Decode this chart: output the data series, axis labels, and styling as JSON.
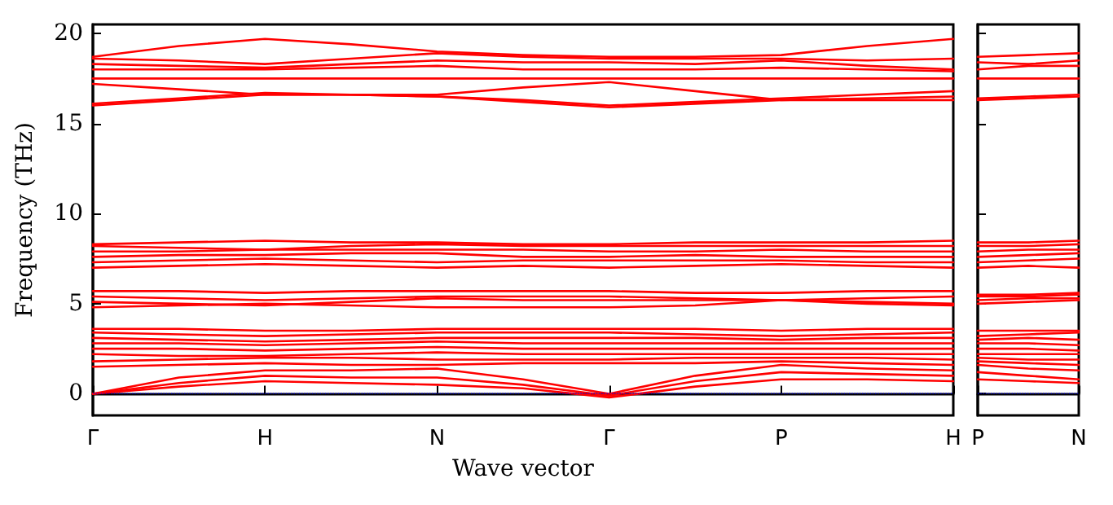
{
  "chart_data": [
    {
      "type": "line",
      "xlabel": "Wave vector",
      "ylabel": "Frequency (THz)",
      "categories": [
        "Γ",
        null,
        "H",
        null,
        "N",
        null,
        "Γ",
        null,
        "P",
        null,
        "H"
      ],
      "ylim": [
        -1.2,
        20.5
      ],
      "yticks": [
        0,
        5,
        10,
        15,
        20
      ],
      "grid": false,
      "marker": "none",
      "line_style": "solid",
      "ref_lines": [
        {
          "axis": "y",
          "value": 0,
          "color": "#0000ff",
          "line_style": "dotted"
        }
      ],
      "series": [
        {
          "color": "#ff0000",
          "values": [
            16.0,
            16.3,
            16.6,
            16.6,
            16.5,
            16.2,
            15.9,
            16.1,
            16.3,
            16.4,
            16.5
          ]
        },
        {
          "color": "#ff0000",
          "values": [
            16.1,
            16.4,
            16.7,
            16.6,
            16.5,
            16.3,
            16.0,
            16.2,
            16.4,
            16.6,
            16.8
          ]
        },
        {
          "color": "#ff0000",
          "values": [
            17.2,
            16.9,
            16.6,
            16.6,
            16.6,
            17.0,
            17.3,
            16.8,
            16.3,
            16.3,
            16.3
          ]
        },
        {
          "color": "#ff0000",
          "values": [
            17.5,
            17.5,
            17.5,
            17.5,
            17.5,
            17.5,
            17.5,
            17.5,
            17.5,
            17.5,
            17.5
          ]
        },
        {
          "color": "#ff0000",
          "values": [
            18.0,
            18.0,
            18.0,
            18.1,
            18.2,
            18.0,
            18.0,
            18.0,
            18.1,
            18.0,
            17.9
          ]
        },
        {
          "color": "#ff0000",
          "values": [
            18.3,
            18.2,
            18.1,
            18.3,
            18.5,
            18.4,
            18.4,
            18.3,
            18.5,
            18.2,
            18.0
          ]
        },
        {
          "color": "#ff0000",
          "values": [
            18.6,
            18.5,
            18.3,
            18.6,
            18.9,
            18.7,
            18.6,
            18.6,
            18.6,
            18.5,
            18.6
          ]
        },
        {
          "color": "#ff0000",
          "values": [
            18.7,
            19.3,
            19.7,
            19.4,
            19.0,
            18.8,
            18.7,
            18.7,
            18.8,
            19.3,
            19.7
          ]
        },
        {
          "color": "#ff0000",
          "values": [
            7.0,
            7.1,
            7.2,
            7.1,
            7.0,
            7.1,
            7.0,
            7.1,
            7.2,
            7.1,
            7.0
          ]
        },
        {
          "color": "#ff0000",
          "values": [
            7.3,
            7.4,
            7.5,
            7.4,
            7.3,
            7.4,
            7.4,
            7.4,
            7.4,
            7.3,
            7.3
          ]
        },
        {
          "color": "#ff0000",
          "values": [
            7.6,
            7.7,
            7.7,
            7.8,
            7.8,
            7.6,
            7.6,
            7.7,
            7.6,
            7.6,
            7.6
          ]
        },
        {
          "color": "#ff0000",
          "values": [
            7.9,
            7.9,
            8.0,
            8.0,
            8.0,
            8.0,
            7.9,
            7.9,
            8.0,
            7.9,
            7.9
          ]
        },
        {
          "color": "#ff0000",
          "values": [
            8.2,
            8.1,
            8.0,
            8.2,
            8.3,
            8.2,
            8.2,
            8.2,
            8.2,
            8.2,
            8.2
          ]
        },
        {
          "color": "#ff0000",
          "values": [
            8.3,
            8.4,
            8.5,
            8.4,
            8.4,
            8.3,
            8.3,
            8.4,
            8.4,
            8.4,
            8.5
          ]
        },
        {
          "color": "#ff0000",
          "values": [
            4.8,
            4.9,
            5.0,
            4.9,
            4.8,
            4.8,
            4.8,
            4.9,
            5.2,
            5.0,
            4.9
          ]
        },
        {
          "color": "#ff0000",
          "values": [
            5.1,
            5.0,
            4.9,
            5.1,
            5.3,
            5.2,
            5.2,
            5.2,
            5.2,
            5.1,
            5.0
          ]
        },
        {
          "color": "#ff0000",
          "values": [
            5.4,
            5.3,
            5.2,
            5.3,
            5.4,
            5.4,
            5.4,
            5.3,
            5.2,
            5.3,
            5.4
          ]
        },
        {
          "color": "#ff0000",
          "values": [
            5.7,
            5.7,
            5.6,
            5.7,
            5.7,
            5.7,
            5.7,
            5.6,
            5.6,
            5.7,
            5.7
          ]
        },
        {
          "color": "#ff0000",
          "values": [
            0,
            0.4,
            0.7,
            0.6,
            0.5,
            0.3,
            -0.2,
            0.4,
            0.8,
            0.8,
            0.7
          ]
        },
        {
          "color": "#ff0000",
          "values": [
            0,
            0.6,
            1.0,
            0.9,
            0.9,
            0.5,
            -0.1,
            0.7,
            1.2,
            1.1,
            1.0
          ]
        },
        {
          "color": "#ff0000",
          "values": [
            0,
            0.9,
            1.3,
            1.3,
            1.4,
            0.8,
            0,
            1.0,
            1.6,
            1.4,
            1.3
          ]
        },
        {
          "color": "#ff0000",
          "values": [
            1.5,
            1.6,
            1.7,
            1.6,
            1.6,
            1.7,
            1.7,
            1.7,
            1.8,
            1.7,
            1.6
          ]
        },
        {
          "color": "#ff0000",
          "values": [
            1.8,
            1.9,
            2.0,
            2.0,
            1.9,
            1.9,
            1.9,
            2.0,
            2.0,
            2.0,
            1.9
          ]
        },
        {
          "color": "#ff0000",
          "values": [
            2.2,
            2.1,
            2.1,
            2.2,
            2.3,
            2.2,
            2.2,
            2.2,
            2.2,
            2.2,
            2.2
          ]
        },
        {
          "color": "#ff0000",
          "values": [
            2.5,
            2.5,
            2.4,
            2.5,
            2.6,
            2.5,
            2.5,
            2.5,
            2.5,
            2.5,
            2.5
          ]
        },
        {
          "color": "#ff0000",
          "values": [
            2.8,
            2.8,
            2.7,
            2.8,
            2.9,
            2.8,
            2.8,
            2.8,
            2.8,
            2.8,
            2.8
          ]
        },
        {
          "color": "#ff0000",
          "values": [
            3.1,
            3.0,
            2.9,
            3.0,
            3.1,
            3.1,
            3.1,
            3.1,
            3.0,
            3.1,
            3.1
          ]
        },
        {
          "color": "#ff0000",
          "values": [
            3.4,
            3.3,
            3.2,
            3.3,
            3.4,
            3.4,
            3.4,
            3.3,
            3.2,
            3.3,
            3.4
          ]
        },
        {
          "color": "#ff0000",
          "values": [
            3.6,
            3.6,
            3.5,
            3.5,
            3.6,
            3.6,
            3.6,
            3.6,
            3.5,
            3.6,
            3.6
          ]
        }
      ]
    },
    {
      "type": "line",
      "categories": [
        "P",
        null,
        "N"
      ],
      "ylim": [
        -1.2,
        20.5
      ],
      "yticks": [
        0,
        5,
        10,
        15,
        20
      ],
      "tick_labels": "x",
      "grid": false,
      "marker": "none",
      "line_style": "solid",
      "ref_lines": [
        {
          "axis": "y",
          "value": 0,
          "color": "#0000ff",
          "line_style": "dotted"
        }
      ],
      "series": [
        {
          "color": "#ff0000",
          "values": [
            16.3,
            16.4,
            16.5
          ]
        },
        {
          "color": "#ff0000",
          "values": [
            16.4,
            16.5,
            16.6
          ]
        },
        {
          "color": "#ff0000",
          "values": [
            17.5,
            17.5,
            17.5
          ]
        },
        {
          "color": "#ff0000",
          "values": [
            18.0,
            18.2,
            18.2
          ]
        },
        {
          "color": "#ff0000",
          "values": [
            18.4,
            18.3,
            18.5
          ]
        },
        {
          "color": "#ff0000",
          "values": [
            18.7,
            18.8,
            18.9
          ]
        },
        {
          "color": "#ff0000",
          "values": [
            7.0,
            7.1,
            7.0
          ]
        },
        {
          "color": "#ff0000",
          "values": [
            7.3,
            7.4,
            7.5
          ]
        },
        {
          "color": "#ff0000",
          "values": [
            7.6,
            7.7,
            7.8
          ]
        },
        {
          "color": "#ff0000",
          "values": [
            7.9,
            8.0,
            8.0
          ]
        },
        {
          "color": "#ff0000",
          "values": [
            8.2,
            8.2,
            8.3
          ]
        },
        {
          "color": "#ff0000",
          "values": [
            8.4,
            8.4,
            8.5
          ]
        },
        {
          "color": "#ff0000",
          "values": [
            5.0,
            5.1,
            5.2
          ]
        },
        {
          "color": "#ff0000",
          "values": [
            5.2,
            5.3,
            5.3
          ]
        },
        {
          "color": "#ff0000",
          "values": [
            5.4,
            5.4,
            5.5
          ]
        },
        {
          "color": "#ff0000",
          "values": [
            5.5,
            5.5,
            5.6
          ]
        },
        {
          "color": "#ff0000",
          "values": [
            0.8,
            0.7,
            0.6
          ]
        },
        {
          "color": "#ff0000",
          "values": [
            1.2,
            1.0,
            0.8
          ]
        },
        {
          "color": "#ff0000",
          "values": [
            1.6,
            1.4,
            1.3
          ]
        },
        {
          "color": "#ff0000",
          "values": [
            1.8,
            1.7,
            1.6
          ]
        },
        {
          "color": "#ff0000",
          "values": [
            2.0,
            1.9,
            1.9
          ]
        },
        {
          "color": "#ff0000",
          "values": [
            2.2,
            2.2,
            2.2
          ]
        },
        {
          "color": "#ff0000",
          "values": [
            2.5,
            2.5,
            2.4
          ]
        },
        {
          "color": "#ff0000",
          "values": [
            2.8,
            2.8,
            2.7
          ]
        },
        {
          "color": "#ff0000",
          "values": [
            3.0,
            3.1,
            3.0
          ]
        },
        {
          "color": "#ff0000",
          "values": [
            3.2,
            3.3,
            3.4
          ]
        },
        {
          "color": "#ff0000",
          "values": [
            3.5,
            3.5,
            3.5
          ]
        }
      ]
    }
  ]
}
